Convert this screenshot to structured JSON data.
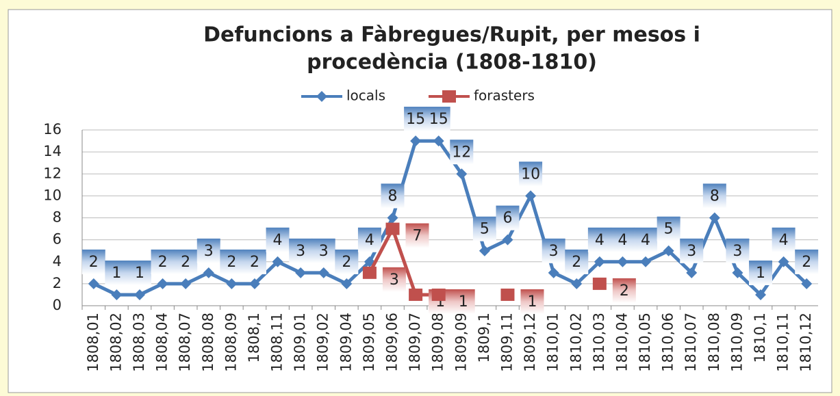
{
  "chart_data": {
    "type": "line",
    "title": [
      "Defuncions  a Fàbregues/Rupit, per mesos i",
      "procedència (1808-1810)"
    ],
    "categories": [
      "1808,01",
      "1808,02",
      "1808,03",
      "1808,04",
      "1808,07",
      "1808,08",
      "1808,09",
      "1808,1",
      "1808,11",
      "1809,01",
      "1809,02",
      "1809,04",
      "1809,05",
      "1809,06",
      "1809,07",
      "1809,08",
      "1809,09",
      "1809,1",
      "1809,11",
      "1809,12",
      "1810,01",
      "1810,02",
      "1810,03",
      "1810,04",
      "1810,05",
      "1810,06",
      "1810,07",
      "1810,08",
      "1810,09",
      "1810,1",
      "1810,11",
      "1810,12"
    ],
    "series": [
      {
        "name": "locals",
        "color": "#4a7ebb",
        "marker": "diamond",
        "values": [
          2,
          1,
          1,
          2,
          2,
          3,
          2,
          2,
          4,
          3,
          3,
          2,
          4,
          8,
          15,
          15,
          12,
          5,
          6,
          10,
          3,
          2,
          4,
          4,
          4,
          5,
          3,
          8,
          3,
          1,
          4,
          2
        ]
      },
      {
        "name": "forasters",
        "color": "#c0504d",
        "marker": "square",
        "values": [
          null,
          null,
          null,
          null,
          null,
          null,
          null,
          null,
          null,
          null,
          null,
          null,
          3,
          7,
          1,
          1,
          null,
          null,
          1,
          null,
          null,
          null,
          2,
          null,
          null,
          null,
          null,
          null,
          null,
          null,
          null,
          null
        ]
      }
    ],
    "ylim": [
      0,
      16
    ],
    "yticks": [
      0,
      2,
      4,
      6,
      8,
      10,
      12,
      14,
      16
    ],
    "grid": true,
    "legend": "top"
  }
}
